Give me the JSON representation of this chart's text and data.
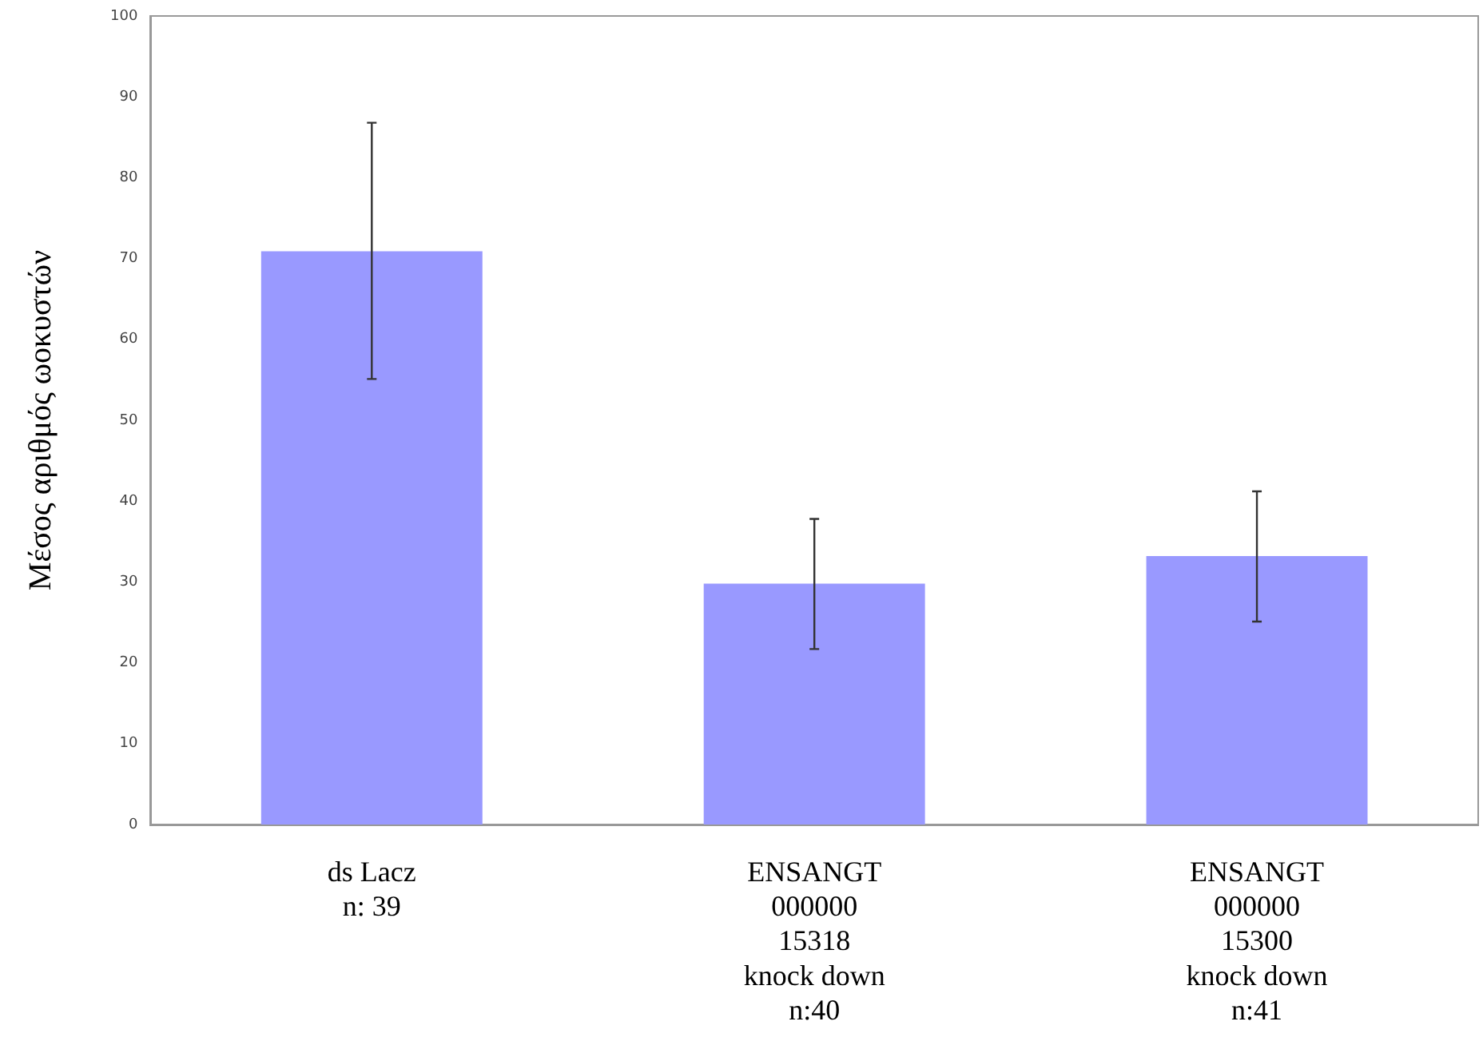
{
  "chart_data": {
    "type": "bar",
    "ylabel": "Μέσος αριθμός ωοκυστών",
    "categories": [
      "ds Lacz\nn: 39",
      "ENSANGT\n000000\n15318\nknock down\nn:40",
      "ENSANGT\n000000\n15300\nknock down\nn:41"
    ],
    "values": [
      70.9,
      29.8,
      33.2
    ],
    "color": "#9999ff",
    "errors": [
      [
        55.1,
        86.8
      ],
      [
        21.7,
        37.8
      ],
      [
        25.1,
        41.2
      ]
    ],
    "ylim": [
      0,
      100
    ],
    "yticks": [
      0,
      10,
      20,
      30,
      40,
      50,
      60,
      70,
      80,
      90,
      100
    ],
    "grid": false,
    "legend": false
  }
}
